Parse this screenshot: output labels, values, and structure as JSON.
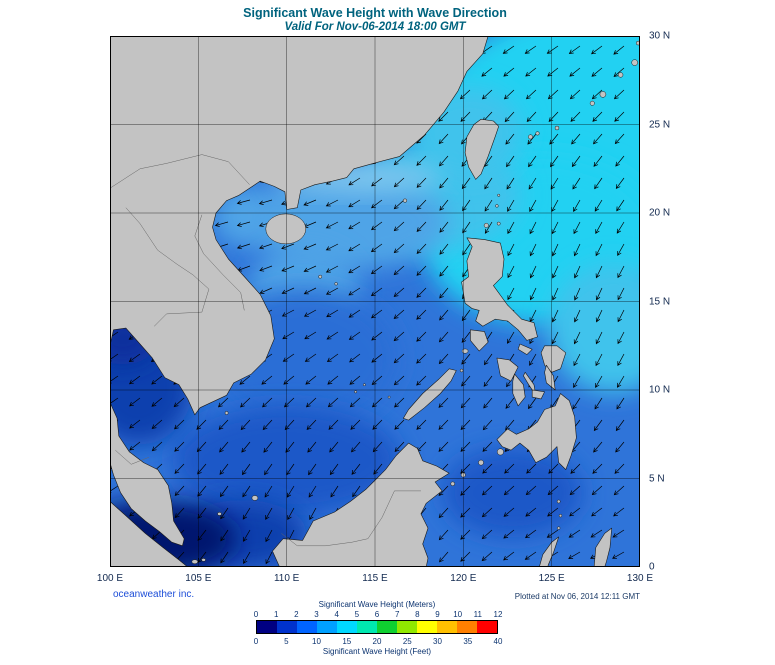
{
  "header": {
    "title": "Significant Wave Height with Wave Direction",
    "subtitle": "Valid For Nov-06-2014 18:00 GMT"
  },
  "axes": {
    "lon_labels": [
      "100 E",
      "105 E",
      "110 E",
      "115 E",
      "120 E",
      "125 E",
      "130 E"
    ],
    "lat_labels": [
      "30 N",
      "25 N",
      "20 N",
      "15 N",
      "10 N",
      "5 N",
      "0"
    ]
  },
  "footer": {
    "credit": "oceanweather inc.",
    "plotted": "Plotted at Nov 06, 2014 12:11 GMT"
  },
  "legend": {
    "meters_label": "Significant Wave Height (Meters)",
    "feet_label": "Significant Wave Height (Feet)",
    "meters_ticks": [
      "0",
      "1",
      "2",
      "3",
      "4",
      "5",
      "6",
      "7",
      "8",
      "9",
      "10",
      "11",
      "12"
    ],
    "feet_ticks": [
      "0",
      "5",
      "10",
      "15",
      "20",
      "25",
      "30",
      "35",
      "40"
    ],
    "colors": [
      "#000082",
      "#0032cd",
      "#0064ff",
      "#00a0ff",
      "#00d8ff",
      "#00e8b0",
      "#0fd030",
      "#90e800",
      "#ffff00",
      "#ffc000",
      "#ff7f00",
      "#ff0000"
    ]
  },
  "colors": {
    "title": "#00637e",
    "axis_text": "#12294f",
    "credit": "#1d4ed8",
    "footnote": "#1b3a66",
    "legend_text": "#0d3470"
  },
  "map_colors": {
    "land": "#c3c3c3",
    "coast": "#1a1a1a",
    "base": "#2f74d9",
    "cyan1": "#24d1f2",
    "cyan2": "#40c3ec",
    "light": "#4fa4e7",
    "pale": "#7fc6ee",
    "mid": "#2a6ed6",
    "deep": "#1e58c8",
    "dark": "#1141ae",
    "darker": "#0a2f9c",
    "navy": "#02126e"
  },
  "arrows": {
    "color": "#000000",
    "spacing": 22,
    "length": 13,
    "base_angle_deg": 140,
    "direction_description": "generally toward the southwest / west-southwest"
  },
  "chart_data": {
    "type": "heatmap",
    "title": "Significant Wave Height with Wave Direction",
    "valid_time": "Nov-06-2014 18:00 GMT",
    "plotted_time": "Nov 06, 2014 12:11 GMT",
    "source": "oceanweather inc.",
    "x_ticks": [
      "100 E",
      "105 E",
      "110 E",
      "115 E",
      "120 E",
      "125 E",
      "130 E"
    ],
    "y_ticks": [
      "0",
      "5 N",
      "10 N",
      "15 N",
      "20 N",
      "25 N",
      "30 N"
    ],
    "x_range_deg_east": [
      100,
      130
    ],
    "y_range_deg_north": [
      0,
      30
    ],
    "grid": true,
    "colorbar": {
      "label_meters": "Significant Wave Height (Meters)",
      "label_feet": "Significant Wave Height (Feet)",
      "meters_ticks": [
        0,
        1,
        2,
        3,
        4,
        5,
        6,
        7,
        8,
        9,
        10,
        11,
        12
      ],
      "feet_ticks": [
        0,
        5,
        10,
        15,
        20,
        25,
        30,
        35,
        40
      ],
      "segment_colors": [
        "#000082",
        "#0032cd",
        "#0064ff",
        "#00a0ff",
        "#00d8ff",
        "#00e8b0",
        "#0fd030",
        "#90e800",
        "#ffff00",
        "#ffc000",
        "#ff7f00",
        "#ff0000"
      ]
    },
    "vector_overlay": "wave-direction arrows pointing generally toward the southwest (northeast monsoon pattern)",
    "field_estimates": [
      {
        "region": "Philippine Sea / Luzon Strait / East China Sea (northeast quadrant)",
        "sig_wave_height_m": "3.5-4.5"
      },
      {
        "region": "Northern South China Sea off the China coast",
        "sig_wave_height_m": "2.5-3.5"
      },
      {
        "region": "Central South China Sea",
        "sig_wave_height_m": "2-3"
      },
      {
        "region": "Southern South China Sea, Sulu and Celebes Seas",
        "sig_wave_height_m": "1.5-2.5"
      },
      {
        "region": "Gulf of Thailand",
        "sig_wave_height_m": "0.5-1.5"
      },
      {
        "region": "Strait of Malacca (southwest corner)",
        "sig_wave_height_m": "0-0.5"
      }
    ]
  }
}
